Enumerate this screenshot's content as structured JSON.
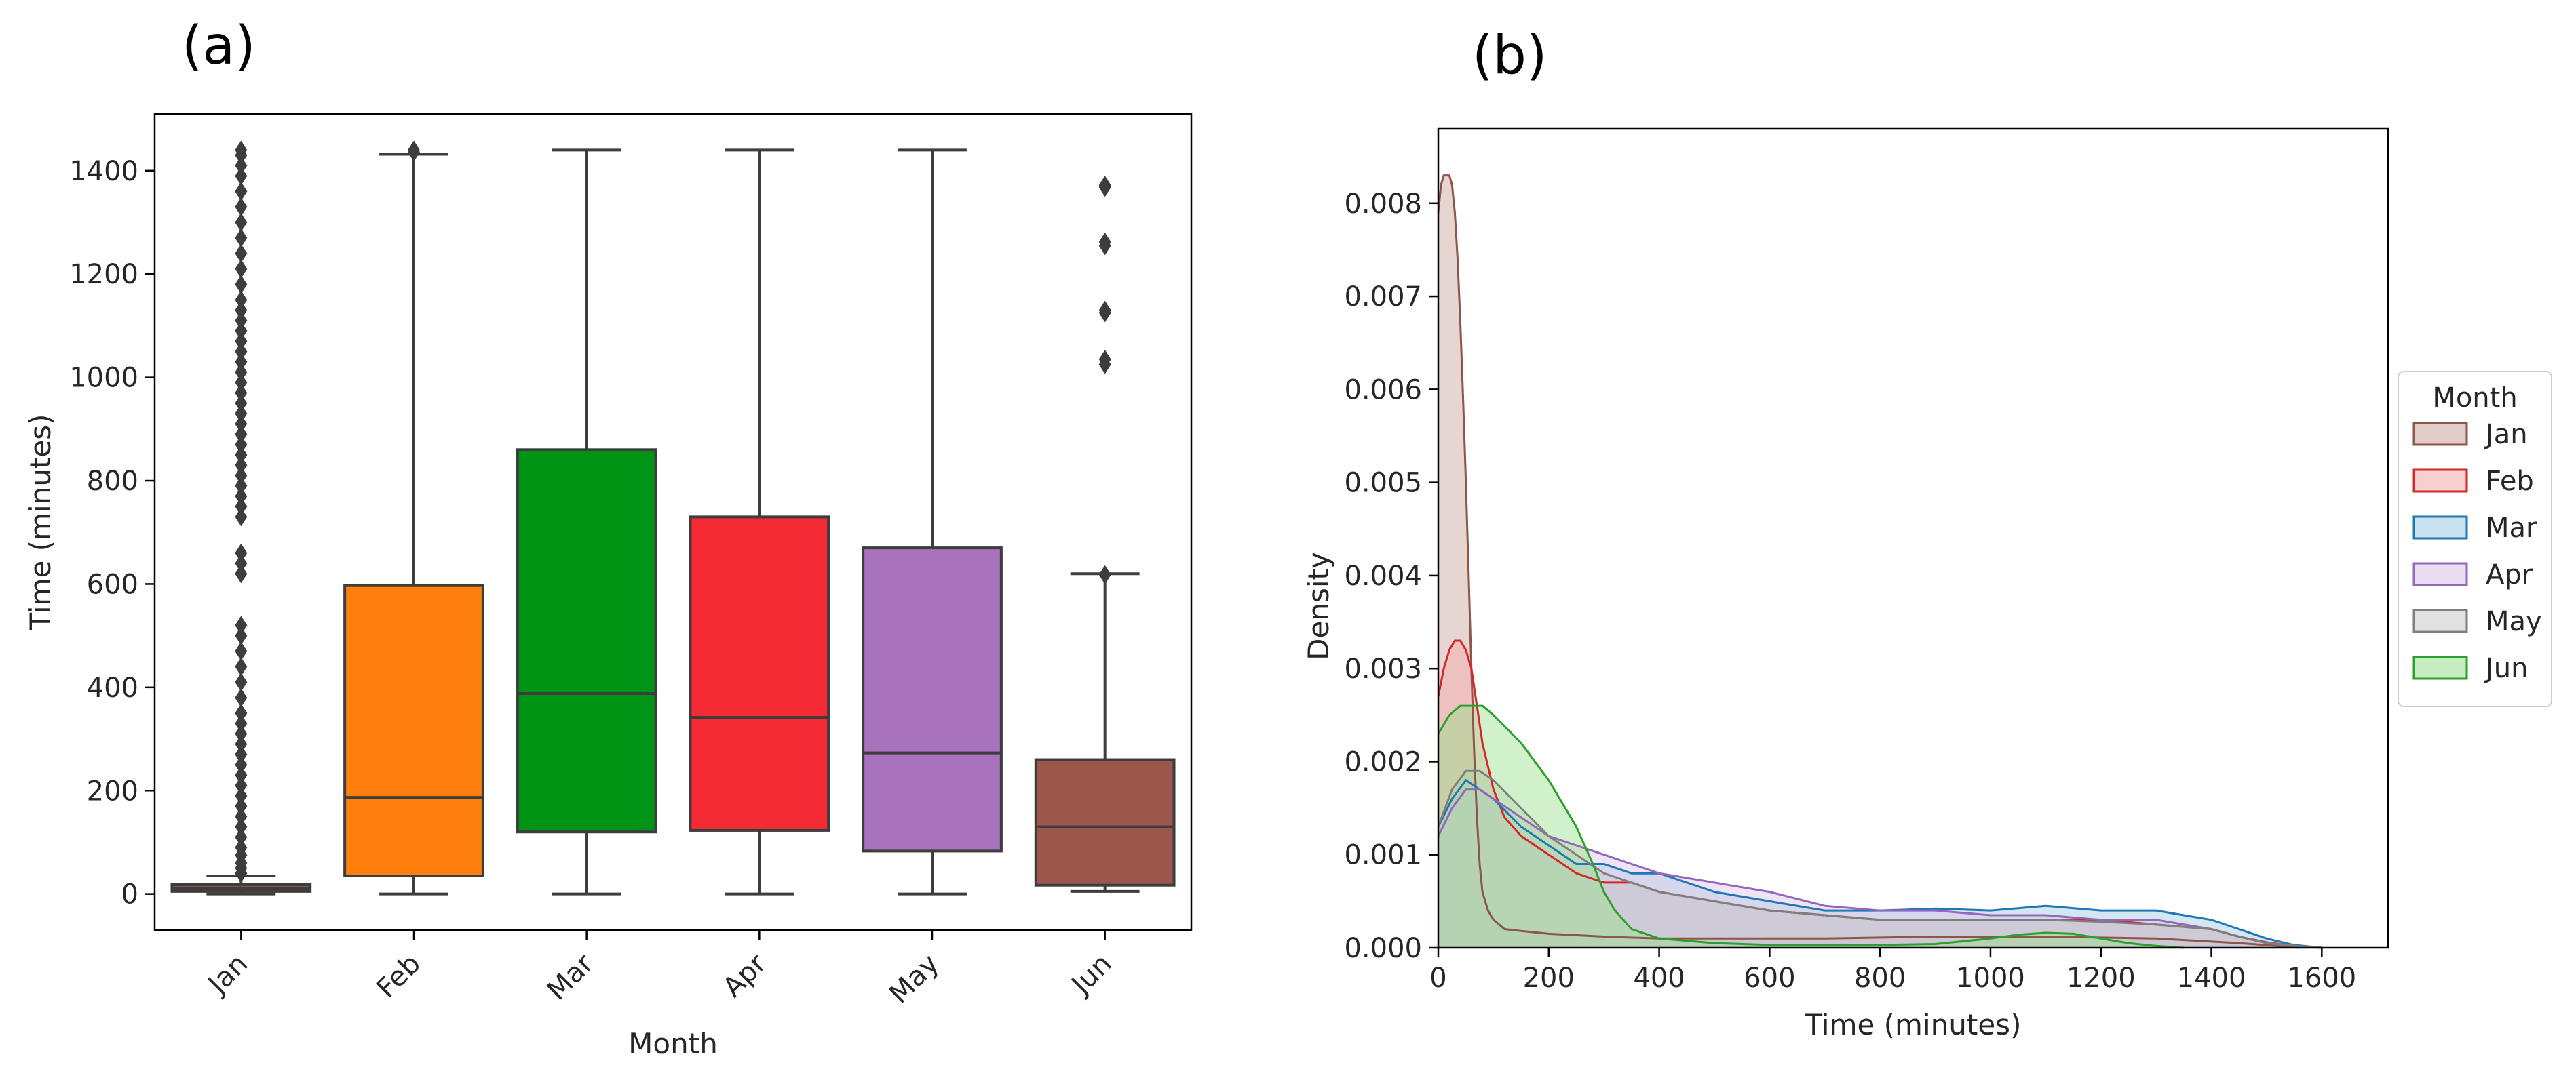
{
  "figure": {
    "panel_a_label": "(a)",
    "panel_b_label": "(b)"
  },
  "chart_data": [
    {
      "type": "box",
      "panel": "(a)",
      "title": "",
      "xlabel": "Month",
      "ylabel": "Time (minutes)",
      "ylim": [
        -70,
        1510
      ],
      "yticks": [
        0,
        200,
        400,
        600,
        800,
        1000,
        1200,
        1400
      ],
      "categories": [
        "Jan",
        "Feb",
        "Mar",
        "Apr",
        "May",
        "Jun"
      ],
      "boxes": [
        {
          "name": "Jan",
          "color": "#8c564b",
          "whisker_low": 0,
          "q1": 5,
          "median": 10,
          "q3": 18,
          "whisker_high": 35,
          "outliers": [
            40,
            50,
            60,
            75,
            90,
            110,
            130,
            150,
            170,
            190,
            210,
            230,
            250,
            270,
            290,
            310,
            330,
            350,
            380,
            410,
            440,
            470,
            500,
            520,
            620,
            640,
            660,
            730,
            750,
            770,
            790,
            810,
            830,
            850,
            870,
            890,
            910,
            930,
            950,
            970,
            990,
            1010,
            1030,
            1050,
            1070,
            1090,
            1110,
            1130,
            1150,
            1180,
            1210,
            1240,
            1270,
            1300,
            1330,
            1360,
            1390,
            1410,
            1430,
            1440
          ]
        },
        {
          "name": "Feb",
          "color": "#ff7f0e",
          "whisker_low": 0,
          "q1": 35,
          "median": 187,
          "q3": 597,
          "whisker_high": 1432,
          "outliers": [
            1436,
            1440
          ]
        },
        {
          "name": "Mar",
          "color": "#009414",
          "whisker_low": 0,
          "q1": 120,
          "median": 388,
          "q3": 860,
          "whisker_high": 1440,
          "outliers": []
        },
        {
          "name": "Apr",
          "color": "#f42a35",
          "whisker_low": 0,
          "q1": 123,
          "median": 342,
          "q3": 730,
          "whisker_high": 1440,
          "outliers": []
        },
        {
          "name": "May",
          "color": "#a872bd",
          "whisker_low": 0,
          "q1": 83,
          "median": 273,
          "q3": 670,
          "whisker_high": 1440,
          "outliers": []
        },
        {
          "name": "Jun",
          "color": "#9c574d",
          "whisker_low": 5,
          "q1": 17,
          "median": 130,
          "q3": 260,
          "whisker_high": 620,
          "outliers": [
            618,
            1025,
            1035,
            1125,
            1130,
            1255,
            1262,
            1368,
            1372
          ]
        }
      ]
    },
    {
      "type": "area",
      "panel": "(b)",
      "title": "",
      "xlabel": "Time (minutes)",
      "ylabel": "Density",
      "xlim": [
        0,
        1720
      ],
      "ylim": [
        0,
        0.0088
      ],
      "xticks": [
        0,
        200,
        400,
        600,
        800,
        1000,
        1200,
        1400,
        1600
      ],
      "yticks": [
        0.0,
        0.001,
        0.002,
        0.003,
        0.004,
        0.005,
        0.006,
        0.007,
        0.008
      ],
      "ytick_labels": [
        "0.000",
        "0.001",
        "0.002",
        "0.003",
        "0.004",
        "0.005",
        "0.006",
        "0.007",
        "0.008"
      ],
      "legend": {
        "title": "Month",
        "position": "right"
      },
      "series": [
        {
          "name": "Jan",
          "color": "#8c564b",
          "fill": "#c9a29b",
          "x": [
            0,
            5,
            10,
            15,
            20,
            25,
            30,
            35,
            40,
            45,
            50,
            55,
            60,
            65,
            70,
            75,
            80,
            90,
            100,
            120,
            150,
            200,
            300,
            400,
            500,
            700,
            900,
            1100,
            1300,
            1450,
            1520,
            1560
          ],
          "y": [
            0.0079,
            0.0082,
            0.0083,
            0.0083,
            0.0083,
            0.0082,
            0.0079,
            0.0074,
            0.0067,
            0.0059,
            0.005,
            0.004,
            0.003,
            0.0021,
            0.0014,
            0.0009,
            0.0006,
            0.0004,
            0.0003,
            0.0002,
            0.00018,
            0.00015,
            0.00012,
            0.0001,
            0.0001,
            0.0001,
            0.00012,
            0.00012,
            0.0001,
            5e-05,
            2e-05,
            0.0
          ]
        },
        {
          "name": "Feb",
          "color": "#d62728",
          "fill": "#f3a8ab",
          "x": [
            0,
            10,
            20,
            30,
            40,
            50,
            60,
            70,
            80,
            100,
            120,
            150,
            200,
            250,
            300,
            350,
            400,
            500,
            600,
            700,
            800,
            900,
            1000,
            1100,
            1200,
            1300,
            1400,
            1450,
            1500,
            1550,
            1600
          ],
          "y": [
            0.0027,
            0.003,
            0.0032,
            0.0033,
            0.0033,
            0.0032,
            0.003,
            0.0026,
            0.0022,
            0.0017,
            0.0014,
            0.0012,
            0.001,
            0.0008,
            0.0007,
            0.0007,
            0.0006,
            0.0005,
            0.0004,
            0.00035,
            0.0003,
            0.0003,
            0.0003,
            0.0003,
            0.0003,
            0.00025,
            0.0002,
            0.00012,
            6e-05,
            2e-05,
            0.0
          ]
        },
        {
          "name": "Mar",
          "color": "#1f77b4",
          "fill": "#9ecae1",
          "x": [
            0,
            25,
            50,
            75,
            100,
            150,
            200,
            250,
            300,
            350,
            400,
            500,
            600,
            700,
            800,
            900,
            1000,
            1100,
            1200,
            1300,
            1350,
            1400,
            1450,
            1500,
            1550,
            1600
          ],
          "y": [
            0.0013,
            0.0016,
            0.0018,
            0.0017,
            0.0016,
            0.0013,
            0.0011,
            0.0009,
            0.0009,
            0.0008,
            0.0008,
            0.0006,
            0.0005,
            0.0004,
            0.0004,
            0.00042,
            0.0004,
            0.00045,
            0.0004,
            0.0004,
            0.00035,
            0.0003,
            0.0002,
            0.0001,
            3e-05,
            0.0
          ]
        },
        {
          "name": "Apr",
          "color": "#9467bd",
          "fill": "#d9c4e8",
          "x": [
            0,
            25,
            50,
            75,
            100,
            150,
            200,
            250,
            300,
            350,
            400,
            500,
            600,
            700,
            800,
            900,
            1000,
            1100,
            1200,
            1300,
            1400,
            1450,
            1500,
            1550,
            1600
          ],
          "y": [
            0.0012,
            0.0015,
            0.0017,
            0.0017,
            0.0016,
            0.0014,
            0.0012,
            0.0011,
            0.001,
            0.0009,
            0.0008,
            0.0007,
            0.0006,
            0.00045,
            0.0004,
            0.0004,
            0.00035,
            0.00035,
            0.0003,
            0.0003,
            0.0002,
            0.00012,
            5e-05,
            2e-05,
            0.0
          ]
        },
        {
          "name": "May",
          "color": "#7f7f7f",
          "fill": "#c9c9c9",
          "x": [
            0,
            25,
            50,
            75,
            100,
            150,
            200,
            250,
            300,
            350,
            400,
            500,
            600,
            700,
            800,
            900,
            1000,
            1100,
            1200,
            1300,
            1400,
            1450,
            1500,
            1550,
            1600
          ],
          "y": [
            0.0013,
            0.0017,
            0.0019,
            0.0019,
            0.0018,
            0.0015,
            0.0012,
            0.001,
            0.0008,
            0.0007,
            0.0006,
            0.0005,
            0.0004,
            0.00035,
            0.0003,
            0.0003,
            0.0003,
            0.0003,
            0.00028,
            0.00025,
            0.0002,
            0.00012,
            5e-05,
            2e-05,
            0.0
          ]
        },
        {
          "name": "Jun",
          "color": "#2ca02c",
          "fill": "#98df8a",
          "x": [
            0,
            20,
            40,
            60,
            80,
            100,
            150,
            200,
            250,
            280,
            300,
            320,
            350,
            400,
            500,
            600,
            700,
            800,
            900,
            1000,
            1050,
            1100,
            1150,
            1200,
            1250,
            1300,
            1350
          ],
          "y": [
            0.0023,
            0.0025,
            0.0026,
            0.0026,
            0.0026,
            0.0025,
            0.0022,
            0.0018,
            0.0013,
            0.0009,
            0.0006,
            0.0004,
            0.0002,
            0.0001,
            5e-05,
            3e-05,
            3e-05,
            3e-05,
            4e-05,
            0.0001,
            0.00014,
            0.00016,
            0.00015,
            0.0001,
            5e-05,
            2e-05,
            0.0
          ]
        }
      ]
    }
  ]
}
